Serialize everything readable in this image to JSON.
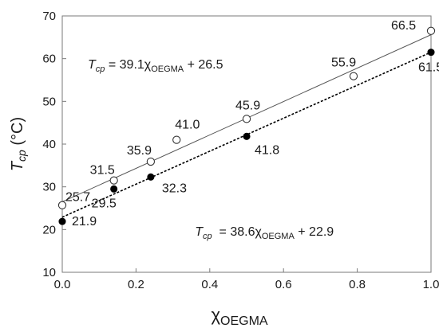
{
  "chart_data": {
    "type": "scatter",
    "title": "",
    "xlabel": {
      "main": "χ",
      "sub": "OEGMA"
    },
    "ylabel": {
      "main": "T",
      "sub": "cp",
      "unit": " (°C)"
    },
    "xlim": [
      0.0,
      1.0
    ],
    "ylim": [
      10,
      70
    ],
    "xticks": [
      "0.0",
      "0.2",
      "0.4",
      "0.6",
      "0.8",
      "1.0"
    ],
    "yticks": [
      "10",
      "20",
      "30",
      "40",
      "50",
      "60",
      "70"
    ],
    "grid": false,
    "legend": "none",
    "series": [
      {
        "marker": "open-circle",
        "line": "solid",
        "color": "#555555",
        "points": [
          {
            "x": 0.0,
            "y": 25.7,
            "label": "25.7"
          },
          {
            "x": 0.14,
            "y": 31.5,
            "label": "31.5"
          },
          {
            "x": 0.24,
            "y": 35.9,
            "label": "35.9"
          },
          {
            "x": 0.31,
            "y": 41.0,
            "label": "41.0"
          },
          {
            "x": 0.5,
            "y": 45.9,
            "label": "45.9"
          },
          {
            "x": 0.79,
            "y": 55.9,
            "label": "55.9"
          },
          {
            "x": 1.0,
            "y": 66.5,
            "label": "66.5"
          }
        ],
        "fit": {
          "slope": 39.1,
          "intercept": 26.5
        },
        "equation": {
          "lhs_main": "T",
          "lhs_sub": "cp",
          "mid": " = 39.1χ",
          "mid_sub": "OEGMA",
          "rhs": " + 26.5"
        }
      },
      {
        "marker": "filled-circle",
        "line": "dotted",
        "color": "#000000",
        "points": [
          {
            "x": 0.0,
            "y": 21.9,
            "label": "21.9"
          },
          {
            "x": 0.14,
            "y": 29.5,
            "label": "29.5"
          },
          {
            "x": 0.24,
            "y": 32.3,
            "label": "32.3"
          },
          {
            "x": 0.5,
            "y": 41.8,
            "label": "41.8"
          },
          {
            "x": 1.0,
            "y": 61.5,
            "label": "61.5"
          }
        ],
        "fit": {
          "slope": 38.6,
          "intercept": 22.9
        },
        "equation": {
          "lhs_main": "T",
          "lhs_sub": "cp",
          "mid": "  = 38.6χ",
          "mid_sub": "OEGMA",
          "rhs": " + 22.9"
        }
      }
    ]
  }
}
